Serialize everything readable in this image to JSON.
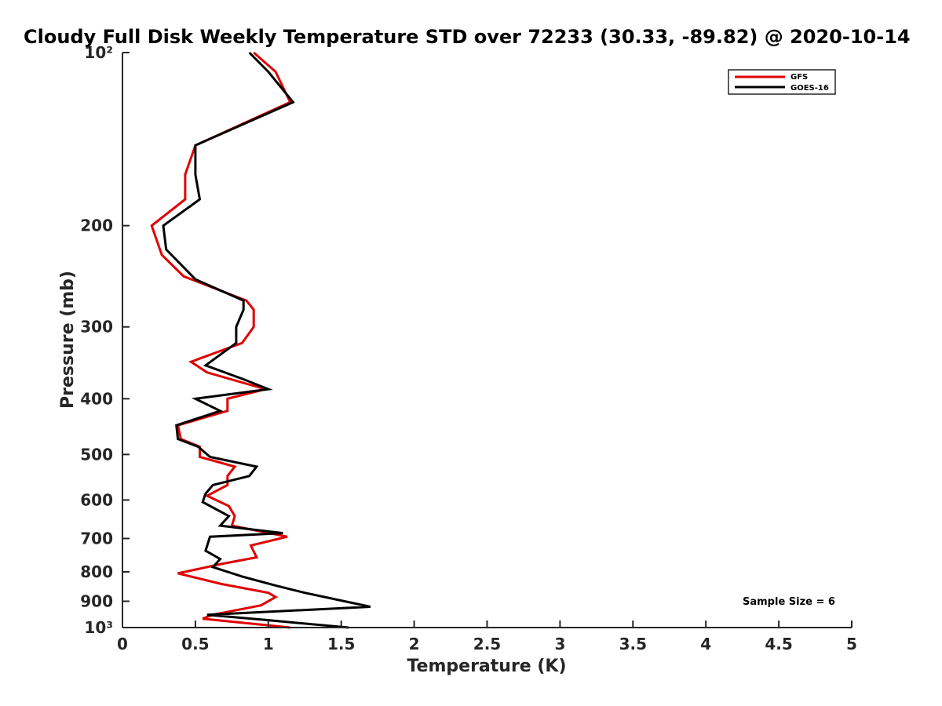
{
  "chart_data": {
    "type": "line",
    "title": "Cloudy Full Disk Weekly Temperature STD over 72233 (30.33, -89.82) @ 2020-10-14",
    "xlabel": "Temperature (K)",
    "ylabel": "Pressure (mb)",
    "xlim": [
      0,
      5
    ],
    "ylim": [
      100,
      1000
    ],
    "yscale": "log",
    "y_direction": "reversed",
    "x_ticks": [
      0,
      0.5,
      1,
      1.5,
      2,
      2.5,
      3,
      3.5,
      4,
      4.5,
      5
    ],
    "x_tick_labels": [
      "0",
      "0.5",
      "1",
      "1.5",
      "2",
      "2.5",
      "3",
      "3.5",
      "4",
      "4.5",
      "5"
    ],
    "y_ticks": [
      100,
      200,
      300,
      400,
      500,
      600,
      700,
      800,
      900,
      1000
    ],
    "y_tick_labels": [
      "10²",
      "200",
      "300",
      "400",
      "500",
      "600",
      "700",
      "800",
      "900",
      "10³"
    ],
    "legend_position": "top-right",
    "annotation": "Sample Size = 6",
    "series": [
      {
        "name": "GFS",
        "color": "#e00000",
        "points": [
          [
            0.9,
            100
          ],
          [
            1.05,
            108
          ],
          [
            1.15,
            122
          ],
          [
            0.5,
            145
          ],
          [
            0.43,
            163
          ],
          [
            0.43,
            180
          ],
          [
            0.2,
            200
          ],
          [
            0.27,
            225
          ],
          [
            0.42,
            245
          ],
          [
            0.85,
            270
          ],
          [
            0.9,
            280
          ],
          [
            0.9,
            300
          ],
          [
            0.82,
            320
          ],
          [
            0.47,
            345
          ],
          [
            0.58,
            360
          ],
          [
            0.98,
            385
          ],
          [
            0.72,
            400
          ],
          [
            0.72,
            420
          ],
          [
            0.38,
            445
          ],
          [
            0.4,
            470
          ],
          [
            0.53,
            485
          ],
          [
            0.53,
            505
          ],
          [
            0.77,
            525
          ],
          [
            0.72,
            545
          ],
          [
            0.72,
            565
          ],
          [
            0.58,
            590
          ],
          [
            0.73,
            615
          ],
          [
            0.77,
            640
          ],
          [
            0.75,
            665
          ],
          [
            1.13,
            695
          ],
          [
            0.88,
            720
          ],
          [
            0.92,
            755
          ],
          [
            0.68,
            775
          ],
          [
            0.38,
            805
          ],
          [
            0.68,
            840
          ],
          [
            1.0,
            870
          ],
          [
            1.05,
            885
          ],
          [
            0.95,
            915
          ],
          [
            0.62,
            950
          ],
          [
            0.55,
            965
          ],
          [
            1.15,
            1000
          ]
        ]
      },
      {
        "name": "GOES-16",
        "color": "#000000",
        "points": [
          [
            0.87,
            100
          ],
          [
            1.0,
            108
          ],
          [
            1.17,
            122
          ],
          [
            0.5,
            145
          ],
          [
            0.5,
            163
          ],
          [
            0.53,
            180
          ],
          [
            0.28,
            200
          ],
          [
            0.3,
            220
          ],
          [
            0.5,
            248
          ],
          [
            0.83,
            270
          ],
          [
            0.83,
            280
          ],
          [
            0.78,
            300
          ],
          [
            0.78,
            320
          ],
          [
            0.57,
            350
          ],
          [
            0.83,
            370
          ],
          [
            1.0,
            385
          ],
          [
            0.5,
            400
          ],
          [
            0.67,
            420
          ],
          [
            0.37,
            445
          ],
          [
            0.38,
            470
          ],
          [
            0.52,
            485
          ],
          [
            0.6,
            505
          ],
          [
            0.92,
            525
          ],
          [
            0.87,
            545
          ],
          [
            0.62,
            565
          ],
          [
            0.57,
            585
          ],
          [
            0.55,
            605
          ],
          [
            0.73,
            640
          ],
          [
            0.67,
            665
          ],
          [
            1.1,
            685
          ],
          [
            0.6,
            695
          ],
          [
            0.57,
            735
          ],
          [
            0.67,
            760
          ],
          [
            0.62,
            785
          ],
          [
            0.82,
            815
          ],
          [
            1.05,
            845
          ],
          [
            1.25,
            870
          ],
          [
            1.7,
            920
          ],
          [
            0.58,
            950
          ],
          [
            0.98,
            970
          ],
          [
            1.55,
            1000
          ]
        ]
      }
    ]
  }
}
